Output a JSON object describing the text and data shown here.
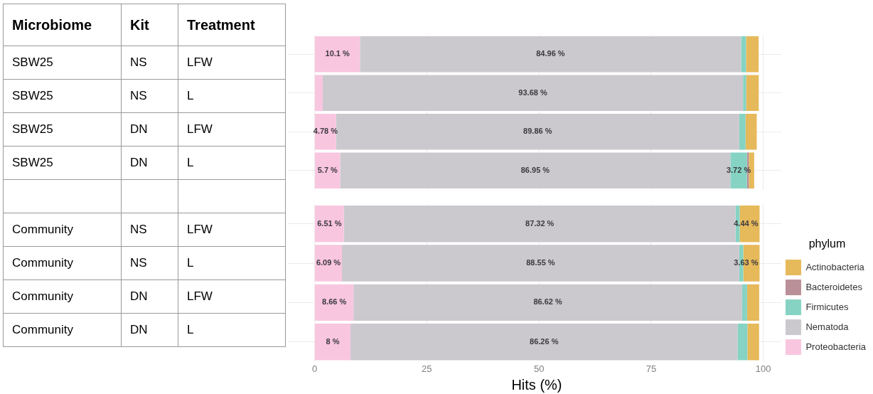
{
  "chart_data": [
    {
      "type": "other",
      "annotations": [
        "Microbiome",
        "Kit",
        "Treatment",
        "SBW25",
        "NS",
        "LFW",
        "SBW25",
        "NS",
        "L",
        "SBW25",
        "DN",
        "LFW",
        "SBW25",
        "DN",
        "L",
        "Community",
        "NS",
        "LFW",
        "Community",
        "NS",
        "L",
        "Community",
        "DN",
        "LFW",
        "Community",
        "DN",
        "L"
      ]
    },
    {
      "type": "bar",
      "orientation": "horizontal",
      "stacked": true,
      "categories": [
        null,
        null,
        null,
        null
      ],
      "xlim": [
        -5,
        104
      ],
      "xticks": [
        0,
        25,
        50,
        75,
        100
      ],
      "grid": true,
      "tick_labels": false,
      "legend": false,
      "series": [
        {
          "color": "#f9c6e0",
          "values": [
            10.1,
            1.8,
            4.78,
            5.7
          ],
          "value_labels": [
            "10.1 %",
            null,
            "4.78 %",
            "5.7 %"
          ]
        },
        {
          "color": "#cbc9ce",
          "values": [
            84.96,
            93.68,
            89.86,
            86.95
          ],
          "value_labels": [
            "84.96 %",
            "93.68 %",
            "89.86 %",
            "86.95 %"
          ]
        },
        {
          "color": "#86d3c4",
          "values": [
            1.1,
            0.7,
            1.4,
            3.72
          ],
          "value_labels": [
            null,
            null,
            null,
            "3.72 %"
          ]
        },
        {
          "color": "#b98f98",
          "values": [
            null,
            null,
            null,
            0.4
          ]
        },
        {
          "color": "#e6b95a",
          "values": [
            2.8,
            2.8,
            2.5,
            1.2
          ]
        }
      ]
    },
    {
      "type": "bar",
      "orientation": "horizontal",
      "stacked": true,
      "categories": [
        null,
        null,
        null,
        null
      ],
      "xlim": [
        -5,
        104
      ],
      "xticks": [
        0,
        25,
        50,
        75,
        100
      ],
      "grid": true,
      "tick_labels": "x",
      "xlabel": "Hits (%)",
      "legend": "right",
      "legend_title": "phylum",
      "series": [
        {
          "name": "Proteobacteria",
          "color": "#f9c6e0",
          "values": [
            6.51,
            6.09,
            8.66,
            8
          ],
          "value_labels": [
            "6.51 %",
            "6.09 %",
            "8.66 %",
            "8 %"
          ]
        },
        {
          "name": "Nematoda",
          "color": "#cbc9ce",
          "values": [
            87.32,
            88.55,
            86.62,
            86.26
          ],
          "value_labels": [
            "87.32 %",
            "88.55 %",
            "86.62 %",
            "86.26 %"
          ]
        },
        {
          "name": "Firmicutes",
          "color": "#86d3c4",
          "values": [
            0.9,
            0.9,
            1.1,
            2.2
          ]
        },
        {
          "name": "Bacteroidetes",
          "color": "#b98f98",
          "values": [
            null,
            null,
            null,
            null
          ]
        },
        {
          "name": "Actinobacteria",
          "color": "#e6b95a",
          "values": [
            4.44,
            3.63,
            2.7,
            2.6
          ],
          "value_labels": [
            "4.44 %",
            "3.63 %",
            null,
            null
          ]
        }
      ]
    }
  ]
}
